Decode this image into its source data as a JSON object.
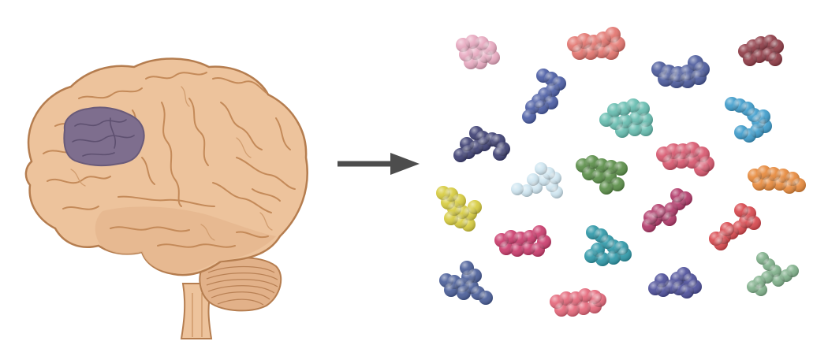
{
  "colors": {
    "brain_fill": "#EDC39C",
    "brain_fold": "#C9905F",
    "brain_outline": "#B57D4F",
    "region_fill": "#7E6E8E",
    "arrow": "#4D4D4D",
    "background": "#FFFFFF"
  },
  "molecules": [
    {
      "name": "molecule-pink",
      "color": "#E8A9C0"
    },
    {
      "name": "molecule-salmon",
      "color": "#E3746E"
    },
    {
      "name": "molecule-maroon",
      "color": "#8E3A45"
    },
    {
      "name": "molecule-navy-top",
      "color": "#4B5A9C"
    },
    {
      "name": "molecule-blue",
      "color": "#4A5CA4"
    },
    {
      "name": "molecule-teal-light",
      "color": "#66BDB0"
    },
    {
      "name": "molecule-sky",
      "color": "#3E9CCB"
    },
    {
      "name": "molecule-indigo",
      "color": "#3D3F73"
    },
    {
      "name": "molecule-rose",
      "color": "#D8576E"
    },
    {
      "name": "molecule-ice",
      "color": "#CFE6F1"
    },
    {
      "name": "molecule-green",
      "color": "#5A8E48"
    },
    {
      "name": "molecule-orange",
      "color": "#E7893B"
    },
    {
      "name": "molecule-yellow",
      "color": "#D7CC3E"
    },
    {
      "name": "molecule-magenta",
      "color": "#B03868"
    },
    {
      "name": "molecule-red",
      "color": "#D8474D"
    },
    {
      "name": "molecule-crimson",
      "color": "#CB3C6D"
    },
    {
      "name": "molecule-teal",
      "color": "#2E98A8"
    },
    {
      "name": "molecule-steel",
      "color": "#4A5E99"
    },
    {
      "name": "molecule-coral",
      "color": "#E5677A"
    },
    {
      "name": "molecule-violet",
      "color": "#4D4F9A"
    },
    {
      "name": "molecule-sage",
      "color": "#7FB08A"
    }
  ]
}
